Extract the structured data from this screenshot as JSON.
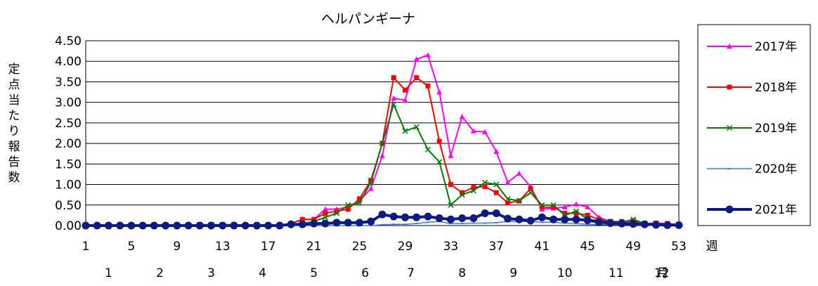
{
  "chart_data": {
    "type": "line",
    "title": "ヘルパンギーナ",
    "ylabel": "定点当たり報告数",
    "xlabel": "週",
    "month_label": "月",
    "ylim": [
      0,
      4.5
    ],
    "xlim": [
      1,
      53
    ],
    "yticks": [
      "0.00",
      "0.50",
      "1.00",
      "1.50",
      "2.00",
      "2.50",
      "3.00",
      "3.50",
      "4.00",
      "4.50"
    ],
    "xtick_values": [
      1,
      5,
      9,
      13,
      17,
      21,
      25,
      29,
      33,
      37,
      41,
      45,
      49,
      53
    ],
    "xtick_labels": [
      "1",
      "5",
      "9",
      "13",
      "17",
      "21",
      "25",
      "29",
      "33",
      "37",
      "41",
      "45",
      "49",
      "53"
    ],
    "month_ticks": [
      {
        "week": 3,
        "label": "1"
      },
      {
        "week": 7.5,
        "label": "2"
      },
      {
        "week": 12,
        "label": "3"
      },
      {
        "week": 16.5,
        "label": "4"
      },
      {
        "week": 21,
        "label": "5"
      },
      {
        "week": 25.5,
        "label": "6"
      },
      {
        "week": 29.5,
        "label": "7"
      },
      {
        "week": 34,
        "label": "8"
      },
      {
        "week": 38.5,
        "label": "9"
      },
      {
        "week": 43,
        "label": "10"
      },
      {
        "week": 47.5,
        "label": "11"
      },
      {
        "week": 51.5,
        "label": "12"
      }
    ],
    "grid": true,
    "legend_position": "right",
    "series": [
      {
        "name": "2017年",
        "color": "#ff00ff",
        "marker": "triangle",
        "values": [
          0,
          0,
          0,
          0,
          0,
          0,
          0,
          0,
          0,
          0,
          0,
          0,
          0,
          0,
          0,
          0,
          0,
          0,
          0.05,
          0.15,
          0.15,
          0.4,
          0.4,
          0.45,
          0.6,
          0.9,
          1.7,
          3.1,
          3.05,
          4.05,
          4.15,
          3.25,
          1.7,
          2.65,
          2.3,
          2.28,
          1.8,
          1.05,
          1.27,
          0.95,
          0.4,
          0.42,
          0.45,
          0.52,
          0.45,
          0.2,
          0.1,
          0.08,
          0.1,
          0.05,
          0.05,
          0.03,
          0.02
        ]
      },
      {
        "name": "2018年",
        "color": "#ff0000",
        "marker": "square",
        "values": [
          0,
          0,
          0,
          0,
          0,
          0,
          0,
          0,
          0,
          0,
          0,
          0,
          0,
          0,
          0,
          0,
          0,
          0,
          0.05,
          0.15,
          0.15,
          0.3,
          0.35,
          0.4,
          0.65,
          1.1,
          2.0,
          3.6,
          3.3,
          3.6,
          3.4,
          2.05,
          1.0,
          0.8,
          0.93,
          0.95,
          0.8,
          0.55,
          0.6,
          0.9,
          0.45,
          0.45,
          0.3,
          0.3,
          0.25,
          0.15,
          0.1,
          0.1,
          0.12,
          0.05,
          0.06,
          0.05,
          0.02
        ]
      },
      {
        "name": "2019年",
        "color": "#007a00",
        "marker": "x",
        "values": [
          0,
          0,
          0,
          0,
          0,
          0,
          0,
          0,
          0,
          0,
          0.02,
          0.02,
          0.02,
          0.02,
          0,
          0,
          0,
          0,
          0.03,
          0.05,
          0.1,
          0.2,
          0.3,
          0.5,
          0.55,
          1.05,
          2.0,
          2.95,
          2.3,
          2.4,
          1.85,
          1.55,
          0.5,
          0.75,
          0.85,
          1.05,
          1.0,
          0.65,
          0.6,
          0.8,
          0.5,
          0.5,
          0.25,
          0.35,
          0.15,
          0.12,
          0.1,
          0.08,
          0.15,
          0.05,
          0.03,
          0.02,
          0.01
        ]
      },
      {
        "name": "2020年",
        "color": "#3b78d8",
        "marker": "dash",
        "values": [
          0,
          0,
          0,
          0,
          0,
          0,
          0,
          0,
          0,
          0,
          0,
          0,
          0,
          0,
          0,
          0,
          0,
          0,
          0,
          0,
          0,
          0,
          0,
          0,
          0,
          0,
          0.02,
          0.03,
          0.03,
          0.05,
          0.08,
          0.1,
          0.05,
          0.05,
          0.06,
          0.06,
          0.07,
          0.1,
          0.1,
          0.1,
          0.08,
          0.08,
          0.06,
          0.05,
          0.03,
          0.02,
          0.02,
          0.02,
          0.02,
          0.01,
          0.01,
          0.01,
          0.01
        ]
      },
      {
        "name": "2021年",
        "color": "#0d1b80",
        "marker": "circle",
        "values": [
          0,
          0,
          0,
          0,
          0,
          0,
          0,
          0,
          0,
          0,
          0,
          0,
          0,
          0,
          0,
          0,
          0,
          0,
          0.03,
          0.03,
          0.05,
          0.05,
          0.07,
          0.07,
          0.07,
          0.1,
          0.27,
          0.22,
          0.2,
          0.2,
          0.22,
          0.18,
          0.15,
          0.18,
          0.18,
          0.3,
          0.3,
          0.17,
          0.15,
          0.12,
          0.2,
          0.15,
          0.15,
          0.15,
          0.13,
          0.08,
          0.06,
          0.05,
          0.04,
          0.03,
          0.02,
          0.01,
          0.01
        ]
      }
    ]
  }
}
